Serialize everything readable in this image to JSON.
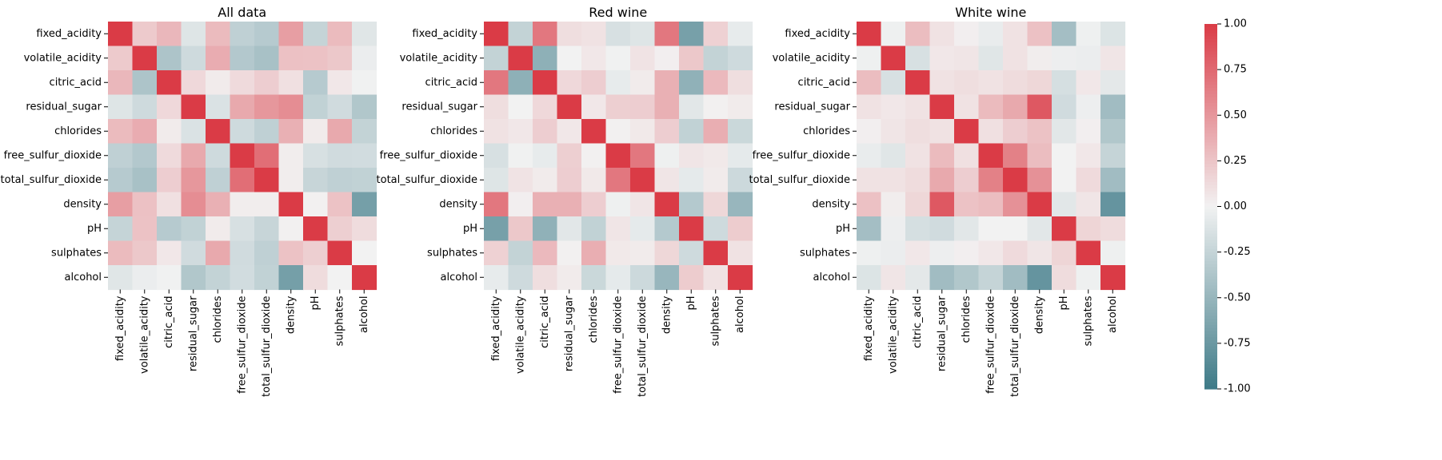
{
  "chart_data": [
    {
      "type": "heatmap",
      "title": "All data",
      "variables": [
        "fixed_acidity",
        "volatile_acidity",
        "citric_acid",
        "residual_sugar",
        "chlorides",
        "free_sulfur_dioxide",
        "total_sulfur_dioxide",
        "density",
        "pH",
        "sulphates",
        "alcohol"
      ],
      "values": [
        [
          1.0,
          0.22,
          0.32,
          -0.11,
          0.3,
          -0.28,
          -0.33,
          0.46,
          -0.25,
          0.3,
          -0.1
        ],
        [
          0.22,
          1.0,
          -0.38,
          -0.2,
          0.38,
          -0.35,
          -0.41,
          0.27,
          0.26,
          0.23,
          -0.04
        ],
        [
          0.32,
          -0.38,
          1.0,
          0.14,
          0.04,
          0.13,
          0.2,
          0.1,
          -0.33,
          0.06,
          -0.01
        ],
        [
          -0.11,
          -0.2,
          0.14,
          1.0,
          -0.13,
          0.4,
          0.5,
          0.55,
          -0.27,
          -0.19,
          -0.36
        ],
        [
          0.3,
          0.38,
          0.04,
          -0.13,
          1.0,
          -0.2,
          -0.28,
          0.36,
          0.04,
          0.4,
          -0.26
        ],
        [
          -0.28,
          -0.35,
          0.13,
          0.4,
          -0.2,
          1.0,
          0.72,
          0.03,
          -0.15,
          -0.19,
          -0.18
        ],
        [
          -0.33,
          -0.41,
          0.2,
          0.5,
          -0.28,
          0.72,
          1.0,
          0.03,
          -0.24,
          -0.28,
          -0.27
        ],
        [
          0.46,
          0.27,
          0.1,
          0.55,
          0.36,
          0.03,
          0.03,
          1.0,
          0.01,
          0.26,
          -0.69
        ],
        [
          -0.25,
          0.26,
          -0.33,
          -0.27,
          0.04,
          -0.15,
          -0.24,
          0.01,
          1.0,
          0.19,
          0.12
        ],
        [
          0.3,
          0.23,
          0.06,
          -0.19,
          0.4,
          -0.19,
          -0.28,
          0.26,
          0.19,
          1.0,
          -0.0
        ],
        [
          -0.1,
          -0.04,
          -0.01,
          -0.36,
          -0.26,
          -0.18,
          -0.27,
          -0.69,
          0.12,
          -0.0,
          1.0
        ]
      ]
    },
    {
      "type": "heatmap",
      "title": "Red wine",
      "variables": [
        "fixed_acidity",
        "volatile_acidity",
        "citric_acid",
        "residual_sugar",
        "chlorides",
        "free_sulfur_dioxide",
        "total_sulfur_dioxide",
        "density",
        "pH",
        "sulphates",
        "alcohol"
      ],
      "values": [
        [
          1.0,
          -0.26,
          0.67,
          0.11,
          0.09,
          -0.15,
          -0.11,
          0.67,
          -0.68,
          0.18,
          -0.06
        ],
        [
          -0.26,
          1.0,
          -0.55,
          0.0,
          0.06,
          -0.01,
          0.08,
          0.02,
          0.23,
          -0.26,
          -0.2
        ],
        [
          0.67,
          -0.55,
          1.0,
          0.14,
          0.2,
          -0.06,
          0.04,
          0.36,
          -0.54,
          0.31,
          0.11
        ],
        [
          0.11,
          0.0,
          0.14,
          1.0,
          0.06,
          0.19,
          0.2,
          0.36,
          -0.09,
          0.01,
          0.04
        ],
        [
          0.09,
          0.06,
          0.2,
          0.06,
          1.0,
          0.01,
          0.05,
          0.2,
          -0.27,
          0.37,
          -0.22
        ],
        [
          -0.15,
          -0.01,
          -0.06,
          0.19,
          0.01,
          1.0,
          0.67,
          -0.02,
          0.07,
          0.05,
          -0.07
        ],
        [
          -0.11,
          0.08,
          0.04,
          0.2,
          0.05,
          0.67,
          1.0,
          0.07,
          -0.07,
          0.04,
          -0.21
        ],
        [
          0.67,
          0.02,
          0.36,
          0.36,
          0.2,
          -0.02,
          0.07,
          1.0,
          -0.34,
          0.15,
          -0.5
        ],
        [
          -0.68,
          0.23,
          -0.54,
          -0.09,
          -0.27,
          0.07,
          -0.07,
          -0.34,
          1.0,
          -0.2,
          0.21
        ],
        [
          0.18,
          -0.26,
          0.31,
          0.01,
          0.37,
          0.05,
          0.04,
          0.15,
          -0.2,
          1.0,
          0.09
        ],
        [
          -0.06,
          -0.2,
          0.11,
          0.04,
          -0.22,
          -0.07,
          -0.21,
          -0.5,
          0.21,
          0.09,
          1.0
        ]
      ]
    },
    {
      "type": "heatmap",
      "title": "White wine",
      "variables": [
        "fixed_acidity",
        "volatile_acidity",
        "citric_acid",
        "residual_sugar",
        "chlorides",
        "free_sulfur_dioxide",
        "total_sulfur_dioxide",
        "density",
        "pH",
        "sulphates",
        "alcohol"
      ],
      "values": [
        [
          1.0,
          -0.02,
          0.29,
          0.09,
          0.02,
          -0.05,
          0.09,
          0.27,
          -0.43,
          -0.02,
          -0.12
        ],
        [
          -0.02,
          1.0,
          -0.15,
          0.06,
          0.07,
          -0.1,
          0.09,
          0.03,
          -0.03,
          -0.04,
          0.07
        ],
        [
          0.29,
          -0.15,
          1.0,
          0.09,
          0.11,
          0.09,
          0.12,
          0.15,
          -0.16,
          0.06,
          -0.08
        ],
        [
          0.09,
          0.06,
          0.09,
          1.0,
          0.09,
          0.3,
          0.4,
          0.84,
          -0.19,
          -0.03,
          -0.45
        ],
        [
          0.02,
          0.07,
          0.11,
          0.09,
          1.0,
          0.1,
          0.2,
          0.26,
          -0.09,
          0.02,
          -0.36
        ],
        [
          -0.05,
          -0.1,
          0.09,
          0.3,
          0.1,
          1.0,
          0.62,
          0.29,
          0.0,
          0.06,
          -0.25
        ],
        [
          0.09,
          0.09,
          0.12,
          0.4,
          0.2,
          0.62,
          1.0,
          0.53,
          0.0,
          0.13,
          -0.45
        ],
        [
          0.27,
          0.03,
          0.15,
          0.84,
          0.26,
          0.29,
          0.53,
          1.0,
          -0.09,
          0.07,
          -0.78
        ],
        [
          -0.43,
          -0.03,
          -0.16,
          -0.19,
          -0.09,
          0.0,
          0.0,
          -0.09,
          1.0,
          0.16,
          0.12
        ],
        [
          -0.02,
          -0.04,
          0.06,
          -0.03,
          0.02,
          0.06,
          0.13,
          0.07,
          0.16,
          1.0,
          -0.02
        ],
        [
          -0.12,
          0.07,
          -0.08,
          -0.45,
          -0.36,
          -0.25,
          -0.45,
          -0.78,
          0.12,
          -0.02,
          1.0
        ]
      ]
    }
  ],
  "colorbar": {
    "min": -1.0,
    "max": 1.0,
    "ticks": [
      "1.00",
      "0.75",
      "0.50",
      "0.25",
      "0.00",
      "-0.25",
      "-0.50",
      "-0.75",
      "-1.00"
    ],
    "colors": {
      "negative": "#3d7a87",
      "neutral": "#f2f2f2",
      "positive": "#da3b46"
    }
  }
}
